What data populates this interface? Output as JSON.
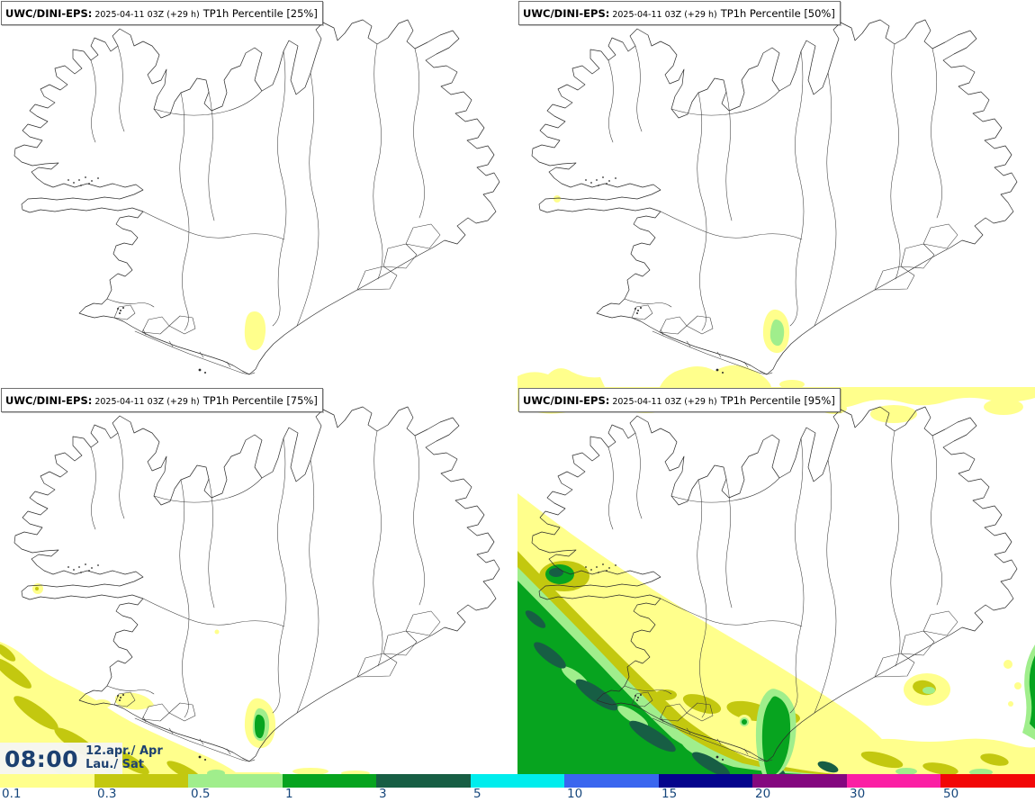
{
  "panels": [
    {
      "model": "UWC/DINI-EPS:",
      "datetime": "2025-04-11 03Z (+29 h)",
      "product": "TP1h Percentile [25%]"
    },
    {
      "model": "UWC/DINI-EPS:",
      "datetime": "2025-04-11 03Z (+29 h)",
      "product": "TP1h Percentile [50%]"
    },
    {
      "model": "UWC/DINI-EPS:",
      "datetime": "2025-04-11 03Z (+29 h)",
      "product": "TP1h Percentile [75%]"
    },
    {
      "model": "UWC/DINI-EPS:",
      "datetime": "2025-04-11 03Z (+29 h)",
      "product": "TP1h Percentile [95%]"
    }
  ],
  "time_box": {
    "time": "08:00",
    "date_line1": "12.apr./ Apr",
    "date_line2": "Lau./ Sat"
  },
  "colorbar": {
    "ticks": [
      "0.1",
      "0.3",
      "0.5",
      "1",
      "3",
      "5",
      "10",
      "15",
      "20",
      "30",
      "50"
    ],
    "colors": [
      "#ffff8c",
      "#c3c80f",
      "#a0ee8c",
      "#07a41f",
      "#175e44",
      "#00eded",
      "#3a66ef",
      "#04048c",
      "#84077f",
      "#fb1fa4",
      "#f20707"
    ],
    "tick_color": "#17477c"
  }
}
